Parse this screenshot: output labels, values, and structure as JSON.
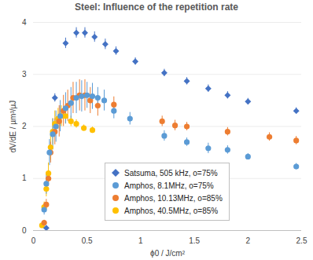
{
  "chart_data": {
    "type": "scatter",
    "title": "Steel: Influence of the repetition rate",
    "x_label": "ϕ0 / J/cm²",
    "y_label": "dV/dE / µm³/µJ",
    "xlim": [
      0,
      2.5
    ],
    "ylim": [
      0,
      4
    ],
    "xticks": [
      0,
      0.5,
      1,
      1.5,
      2,
      2.5
    ],
    "yticks": [
      0,
      1,
      2,
      3,
      4
    ],
    "grid": true,
    "legend": "lower center",
    "series": [
      {
        "name": "Satsuma, 505 kHz, o=75%",
        "color": "#4472c4",
        "marker": "diamond",
        "x": [
          0.12,
          0.2,
          0.3,
          0.4,
          0.48,
          0.57,
          0.67,
          0.77,
          0.95,
          1.22,
          1.43,
          1.63,
          1.81,
          2.0,
          2.45
        ],
        "values": [
          0.05,
          2.55,
          3.6,
          3.8,
          3.8,
          3.72,
          3.58,
          3.45,
          3.25,
          3.03,
          2.87,
          2.73,
          2.6,
          2.48,
          2.3
        ],
        "errors": [
          0.02,
          0.08,
          0.1,
          0.1,
          0.1,
          0.1,
          0.1,
          0.08,
          0.07,
          0.07,
          0.07,
          0.07,
          0.07,
          0.06,
          0.06
        ]
      },
      {
        "name": "Amphos, 8.1MHz, o=75%",
        "color": "#5b9bd5",
        "marker": "circle",
        "x": [
          0.1,
          0.12,
          0.15,
          0.18,
          0.21,
          0.25,
          0.3,
          0.35,
          0.4,
          0.45,
          0.5,
          0.55,
          0.6,
          0.66,
          0.75,
          0.9,
          1.22,
          1.43,
          1.63,
          1.81,
          2.0,
          2.45
        ],
        "values": [
          0.4,
          0.9,
          1.5,
          1.85,
          2.0,
          2.2,
          2.35,
          2.45,
          2.55,
          2.58,
          2.6,
          2.58,
          2.55,
          2.5,
          2.3,
          2.15,
          1.82,
          1.7,
          1.58,
          1.55,
          1.42,
          1.23
        ],
        "errors": [
          0.1,
          0.2,
          0.25,
          0.3,
          0.3,
          0.3,
          0.3,
          0.3,
          0.3,
          0.3,
          0.25,
          0.25,
          0.2,
          0.2,
          0.15,
          0.12,
          0.1,
          0.08,
          0.1,
          0.08,
          0.06,
          0.06
        ]
      },
      {
        "name": "Amphos, 10.13MHz, o=85%",
        "color": "#ed7d31",
        "marker": "circle",
        "x": [
          0.1,
          0.12,
          0.14,
          0.16,
          0.2,
          0.24,
          0.28,
          0.32,
          0.37,
          0.43,
          0.48,
          0.53,
          0.6,
          0.75,
          1.2,
          1.32,
          1.43,
          1.81,
          2.2,
          2.45
        ],
        "values": [
          0.15,
          0.5,
          1.0,
          1.5,
          1.9,
          2.1,
          2.3,
          2.4,
          2.55,
          2.6,
          2.6,
          2.5,
          2.4,
          2.42,
          2.1,
          2.02,
          2.0,
          1.9,
          1.8,
          1.73
        ],
        "errors": [
          0.05,
          0.1,
          0.15,
          0.2,
          0.25,
          0.3,
          0.3,
          0.3,
          0.3,
          0.3,
          0.3,
          0.25,
          0.2,
          0.15,
          0.1,
          0.1,
          0.08,
          0.08,
          0.08,
          0.08
        ]
      },
      {
        "name": "Amphos, 40.5MHz, o=85%",
        "color": "#ffc000",
        "marker": "circle",
        "x": [
          0.08,
          0.1,
          0.12,
          0.14,
          0.16,
          0.18,
          0.2,
          0.23,
          0.26,
          0.3,
          0.35,
          0.4,
          0.47,
          0.55
        ],
        "values": [
          0.1,
          0.45,
          0.8,
          1.1,
          1.6,
          1.9,
          2.05,
          2.15,
          2.2,
          2.2,
          2.1,
          2.05,
          1.97,
          1.93
        ],
        "errors": [
          0.05,
          0.1,
          0.15,
          0.2,
          0.25,
          0.25,
          0.25,
          0.2,
          0.2,
          0.15,
          0.1,
          0.08,
          0.06,
          0.06
        ]
      }
    ]
  }
}
